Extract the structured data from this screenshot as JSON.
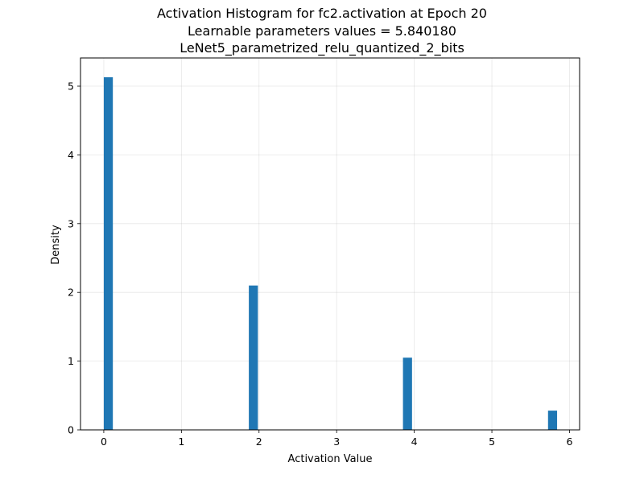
{
  "chart_data": {
    "type": "bar",
    "title_lines": [
      "Activation Histogram for fc2.activation at Epoch 20",
      "Learnable parameters values = 5.840180",
      "LeNet5_parametrized_relu_quantized_2_bits"
    ],
    "xlabel": "Activation Value",
    "ylabel": "Density",
    "xlim": [
      -0.3,
      6.13
    ],
    "ylim": [
      0,
      5.41
    ],
    "x_ticks": [
      0,
      1,
      2,
      3,
      4,
      5,
      6
    ],
    "y_ticks": [
      0,
      1,
      2,
      3,
      4,
      5
    ],
    "grid": true,
    "bar_color": "#1f77b4",
    "bin_width": 0.1168,
    "bars": [
      {
        "x_start": 0.0,
        "value": 5.13
      },
      {
        "x_start": 1.8687,
        "value": 2.1
      },
      {
        "x_start": 3.8544,
        "value": 1.05
      },
      {
        "x_start": 5.7233,
        "value": 0.28
      }
    ]
  }
}
